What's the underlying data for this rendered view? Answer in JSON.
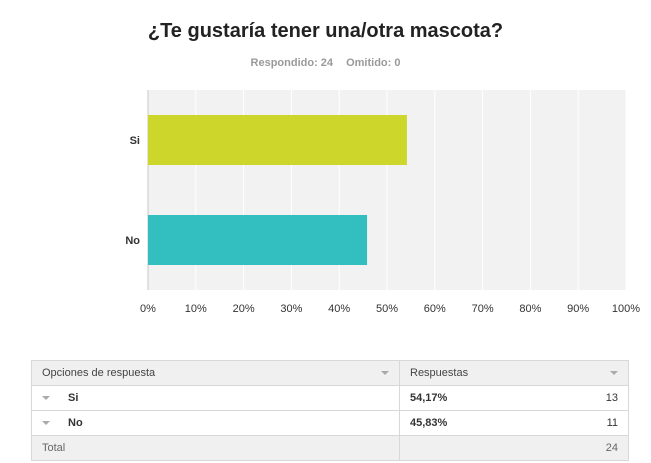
{
  "header": {
    "title": "¿Te gustaría tener una/otra mascota?",
    "answered": "Respondido: 24",
    "skipped": "Omitido: 0"
  },
  "chart_data": {
    "type": "bar",
    "orientation": "horizontal",
    "categories": [
      "Si",
      "No"
    ],
    "values": [
      54.17,
      45.83
    ],
    "colors": [
      "#cdd62b",
      "#33bfbf"
    ],
    "xlim": [
      0,
      100
    ],
    "xticks": [
      "0%",
      "10%",
      "20%",
      "30%",
      "40%",
      "50%",
      "60%",
      "70%",
      "80%",
      "90%",
      "100%"
    ],
    "grid": true,
    "legend": "none"
  },
  "table": {
    "header_options": "Opciones de respuesta",
    "header_responses": "Respuestas",
    "rows": [
      {
        "option": "Si",
        "percent": "54,17%",
        "count": "13"
      },
      {
        "option": "No",
        "percent": "45,83%",
        "count": "11"
      }
    ],
    "total_label": "Total",
    "total_count": "24"
  }
}
